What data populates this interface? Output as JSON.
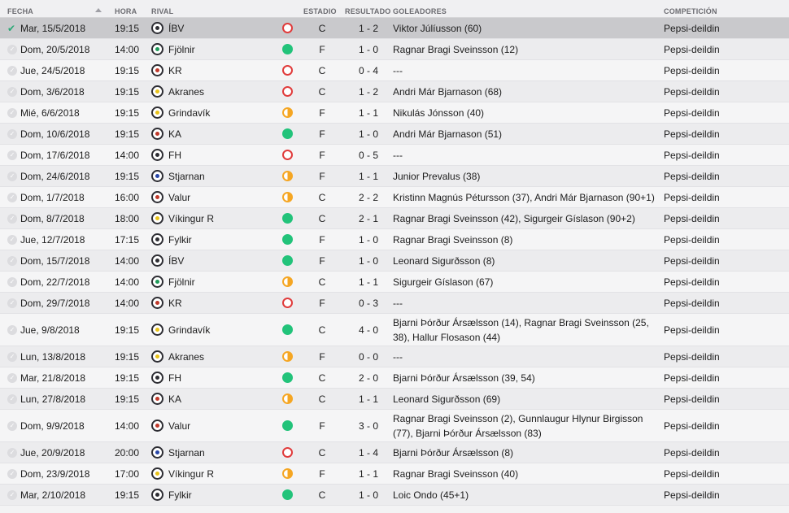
{
  "header": {
    "fecha": "FECHA",
    "hora": "HORA",
    "rival": "RIVAL",
    "estadio": "ESTADIO",
    "resultado": "RESULTADO",
    "goleadores": "GOLEADORES",
    "competicion": "COMPETICIÓN"
  },
  "colors": {
    "win": "#22c37a",
    "loss": "#e03b3b",
    "draw": "#f5a623"
  },
  "rows": [
    {
      "date": "Mar, 15/5/2018",
      "time": "19:15",
      "rival": "ÍBV",
      "result": "loss",
      "venue": "C",
      "score": "1 - 2",
      "scorers": "Viktor Júlíusson (60)",
      "comp": "Pepsi-deildin",
      "checked": true,
      "crest": "#2d2d33"
    },
    {
      "date": "Dom, 20/5/2018",
      "time": "14:00",
      "rival": "Fjölnir",
      "result": "win",
      "venue": "F",
      "score": "1 - 0",
      "scorers": "Ragnar Bragi Sveinsson (12)",
      "comp": "Pepsi-deildin",
      "crest": "#1f9a5a"
    },
    {
      "date": "Jue, 24/5/2018",
      "time": "19:15",
      "rival": "KR",
      "result": "loss",
      "venue": "C",
      "score": "0 - 4",
      "scorers": "---",
      "comp": "Pepsi-deildin",
      "crest": "#c0392b"
    },
    {
      "date": "Dom, 3/6/2018",
      "time": "19:15",
      "rival": "Akranes",
      "result": "loss",
      "venue": "C",
      "score": "1 - 2",
      "scorers": "Andri Már Bjarnason (68)",
      "comp": "Pepsi-deildin",
      "crest": "#e8c21a"
    },
    {
      "date": "Mié, 6/6/2018",
      "time": "19:15",
      "rival": "Grindavík",
      "result": "draw",
      "venue": "F",
      "score": "1 - 1",
      "scorers": "Nikulás Jónsson (40)",
      "comp": "Pepsi-deildin",
      "crest": "#e8c21a"
    },
    {
      "date": "Dom, 10/6/2018",
      "time": "19:15",
      "rival": "KA",
      "result": "win",
      "venue": "F",
      "score": "1 - 0",
      "scorers": "Andri Már Bjarnason (51)",
      "comp": "Pepsi-deildin",
      "crest": "#c0392b"
    },
    {
      "date": "Dom, 17/6/2018",
      "time": "14:00",
      "rival": "FH",
      "result": "loss",
      "venue": "F",
      "score": "0 - 5",
      "scorers": "---",
      "comp": "Pepsi-deildin",
      "crest": "#2d2d33"
    },
    {
      "date": "Dom, 24/6/2018",
      "time": "19:15",
      "rival": "Stjarnan",
      "result": "draw",
      "venue": "F",
      "score": "1 - 1",
      "scorers": "Junior Prevalus (38)",
      "comp": "Pepsi-deildin",
      "crest": "#2846a8"
    },
    {
      "date": "Dom, 1/7/2018",
      "time": "16:00",
      "rival": "Valur",
      "result": "draw",
      "venue": "C",
      "score": "2 - 2",
      "scorers": "Kristinn Magnús Pétursson (37), Andri Már Bjarnason (90+1)",
      "comp": "Pepsi-deildin",
      "crest": "#c0392b"
    },
    {
      "date": "Dom, 8/7/2018",
      "time": "18:00",
      "rival": "Víkingur R",
      "result": "win",
      "venue": "C",
      "score": "2 - 1",
      "scorers": "Ragnar Bragi Sveinsson (42), Sigurgeir Gíslason (90+2)",
      "comp": "Pepsi-deildin",
      "crest": "#e8c21a"
    },
    {
      "date": "Jue, 12/7/2018",
      "time": "17:15",
      "rival": "Fylkir",
      "result": "win",
      "venue": "F",
      "score": "1 - 0",
      "scorers": "Ragnar Bragi Sveinsson (8)",
      "comp": "Pepsi-deildin",
      "crest": "#2d2d33"
    },
    {
      "date": "Dom, 15/7/2018",
      "time": "14:00",
      "rival": "ÍBV",
      "result": "win",
      "venue": "F",
      "score": "1 - 0",
      "scorers": "Leonard Sigurðsson (8)",
      "comp": "Pepsi-deildin",
      "crest": "#2d2d33"
    },
    {
      "date": "Dom, 22/7/2018",
      "time": "14:00",
      "rival": "Fjölnir",
      "result": "draw",
      "venue": "C",
      "score": "1 - 1",
      "scorers": "Sigurgeir Gíslason (67)",
      "comp": "Pepsi-deildin",
      "crest": "#1f9a5a"
    },
    {
      "date": "Dom, 29/7/2018",
      "time": "14:00",
      "rival": "KR",
      "result": "loss",
      "venue": "F",
      "score": "0 - 3",
      "scorers": "---",
      "comp": "Pepsi-deildin",
      "crest": "#c0392b"
    },
    {
      "date": "Jue, 9/8/2018",
      "time": "19:15",
      "rival": "Grindavík",
      "result": "win",
      "venue": "C",
      "score": "4 - 0",
      "scorers": "Bjarni Þórður Ársælsson (14), Ragnar Bragi Sveinsson (25, 38), Hallur Flosason (44)",
      "comp": "Pepsi-deildin",
      "crest": "#e8c21a",
      "tall": true
    },
    {
      "date": "Lun, 13/8/2018",
      "time": "19:15",
      "rival": "Akranes",
      "result": "draw",
      "venue": "F",
      "score": "0 - 0",
      "scorers": "---",
      "comp": "Pepsi-deildin",
      "crest": "#e8c21a"
    },
    {
      "date": "Mar, 21/8/2018",
      "time": "19:15",
      "rival": "FH",
      "result": "win",
      "venue": "C",
      "score": "2 - 0",
      "scorers": "Bjarni Þórður Ársælsson (39, 54)",
      "comp": "Pepsi-deildin",
      "crest": "#2d2d33"
    },
    {
      "date": "Lun, 27/8/2018",
      "time": "19:15",
      "rival": "KA",
      "result": "draw",
      "venue": "C",
      "score": "1 - 1",
      "scorers": "Leonard Sigurðsson (69)",
      "comp": "Pepsi-deildin",
      "crest": "#c0392b"
    },
    {
      "date": "Dom, 9/9/2018",
      "time": "14:00",
      "rival": "Valur",
      "result": "win",
      "venue": "F",
      "score": "3 - 0",
      "scorers": "Ragnar Bragi Sveinsson (2), Gunnlaugur Hlynur Birgisson (77), Bjarni Þórður Ársælsson (83)",
      "comp": "Pepsi-deildin",
      "crest": "#c0392b",
      "tall": true
    },
    {
      "date": "Jue, 20/9/2018",
      "time": "20:00",
      "rival": "Stjarnan",
      "result": "loss",
      "venue": "C",
      "score": "1 - 4",
      "scorers": "Bjarni Þórður Ársælsson (8)",
      "comp": "Pepsi-deildin",
      "crest": "#2846a8"
    },
    {
      "date": "Dom, 23/9/2018",
      "time": "17:00",
      "rival": "Víkingur R",
      "result": "draw",
      "venue": "F",
      "score": "1 - 1",
      "scorers": "Ragnar Bragi Sveinsson (40)",
      "comp": "Pepsi-deildin",
      "crest": "#e8c21a"
    },
    {
      "date": "Mar, 2/10/2018",
      "time": "19:15",
      "rival": "Fylkir",
      "result": "win",
      "venue": "C",
      "score": "1 - 0",
      "scorers": "Loic Ondo (45+1)",
      "comp": "Pepsi-deildin",
      "crest": "#2d2d33"
    }
  ]
}
